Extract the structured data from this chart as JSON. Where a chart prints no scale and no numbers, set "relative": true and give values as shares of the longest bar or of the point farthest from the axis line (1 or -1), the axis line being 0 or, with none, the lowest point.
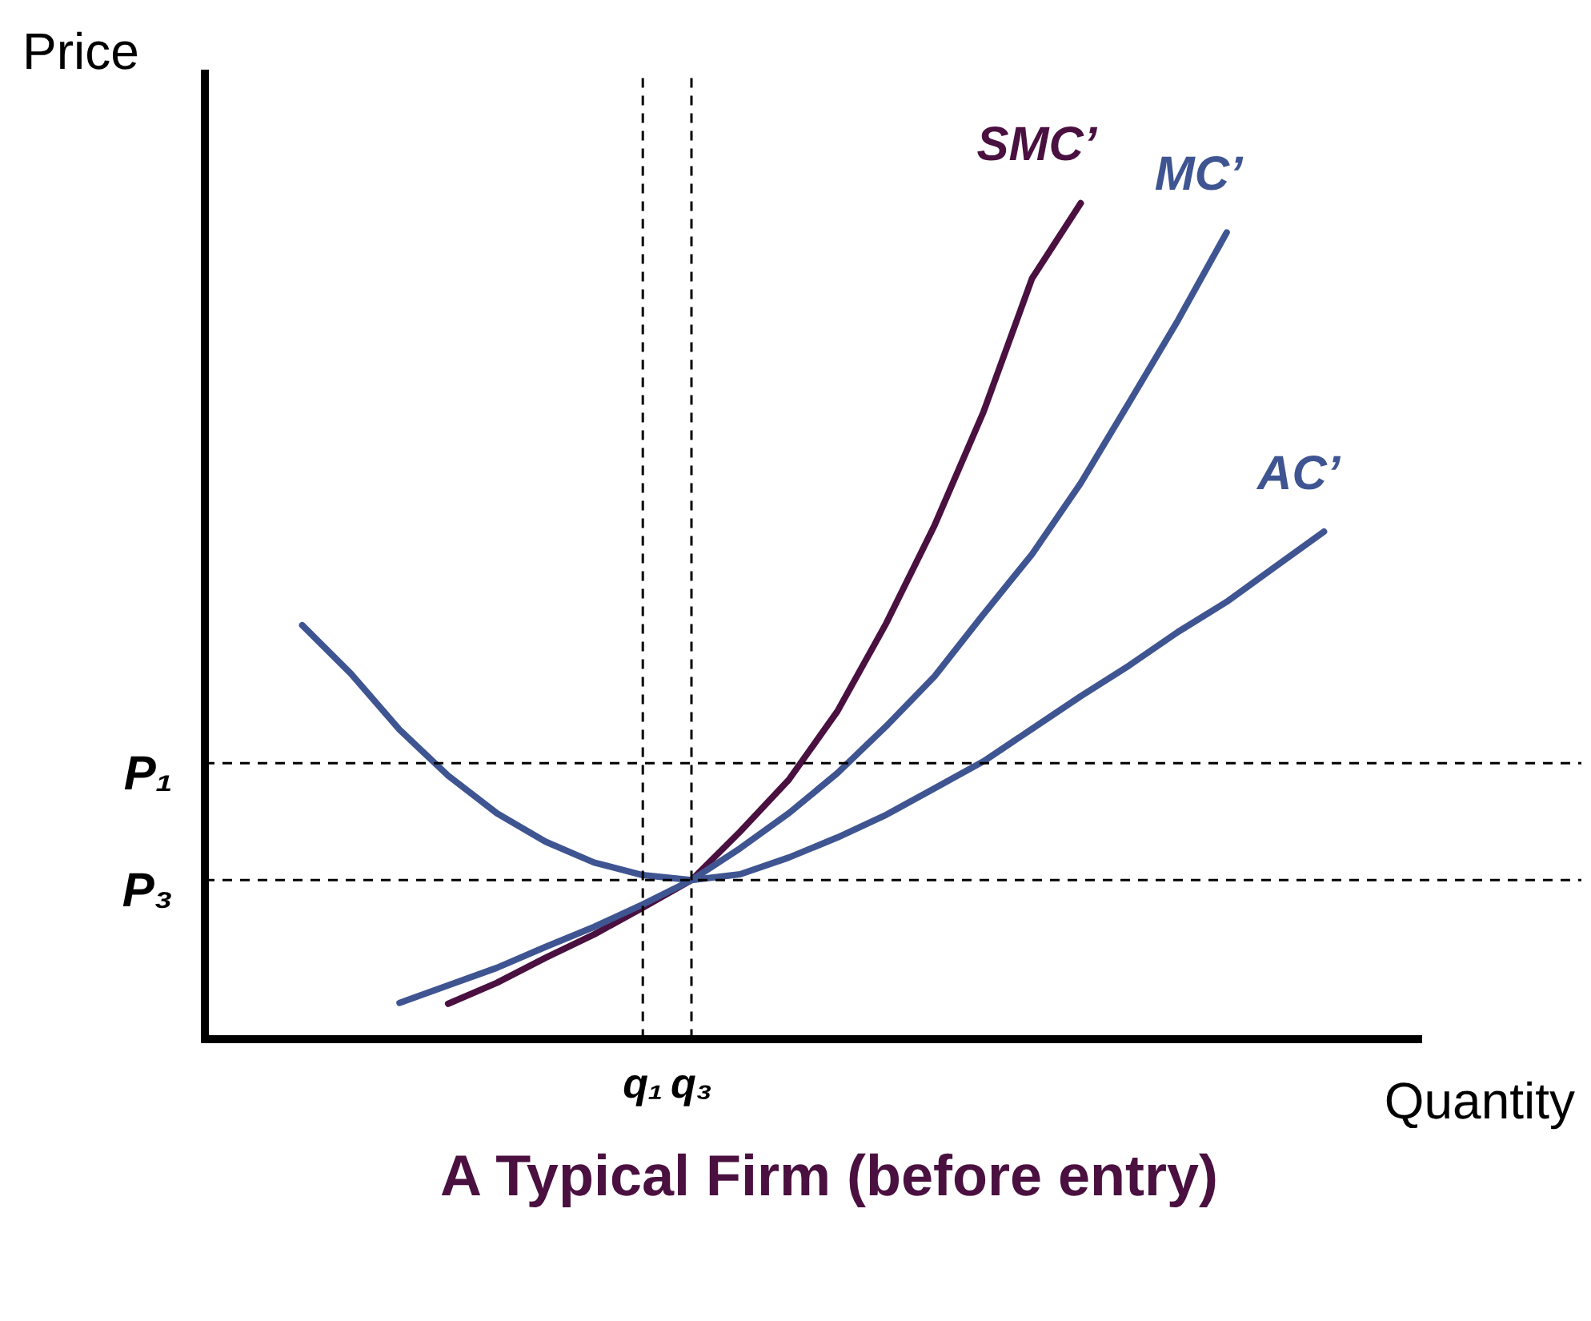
{
  "chart_data": {
    "type": "line",
    "relative": true,
    "title": "A Typical Firm (before entry)",
    "xlabel": "Quantity",
    "ylabel": "Price",
    "legend": false,
    "grid": "x",
    "marker": "none",
    "tick_labels": "x",
    "categories": [
      null,
      null,
      null,
      null,
      null,
      null,
      null,
      "q₁",
      "q₃",
      null,
      null,
      null,
      null,
      null,
      null,
      null,
      null,
      null,
      null,
      null,
      null,
      null
    ],
    "series": [
      {
        "name": "AC’",
        "color": "#3f5592",
        "values": [
          0.495,
          0.437,
          0.37,
          0.315,
          0.27,
          0.236,
          0.211,
          0.196,
          0.19,
          0.197,
          0.217,
          0.241,
          0.268,
          0.3,
          0.332,
          0.371,
          0.41,
          0.447,
          0.487,
          0.523,
          0.565,
          0.607
        ]
      },
      {
        "name": "MC’",
        "color": "#3f5592",
        "values": [
          null,
          null,
          0.043,
          0.064,
          0.085,
          0.11,
          0.134,
          0.161,
          0.19,
          0.228,
          0.27,
          0.318,
          0.374,
          0.434,
          0.508,
          0.58,
          0.665,
          0.762,
          0.86,
          0.965,
          null,
          null
        ]
      },
      {
        "name": "SMC’",
        "color": "#4a1040",
        "values": [
          null,
          null,
          null,
          0.042,
          0.067,
          0.097,
          0.125,
          0.157,
          0.19,
          0.248,
          0.31,
          0.392,
          0.497,
          0.615,
          0.75,
          0.91,
          1,
          null,
          null,
          null,
          null,
          null
        ]
      }
    ],
    "ref_lines": [
      {
        "axis": "y",
        "value": 0.33,
        "label": "P₁",
        "line_style": "dashed"
      },
      {
        "axis": "y",
        "value": 0.19,
        "label": "P₃",
        "line_style": "dashed"
      }
    ]
  }
}
